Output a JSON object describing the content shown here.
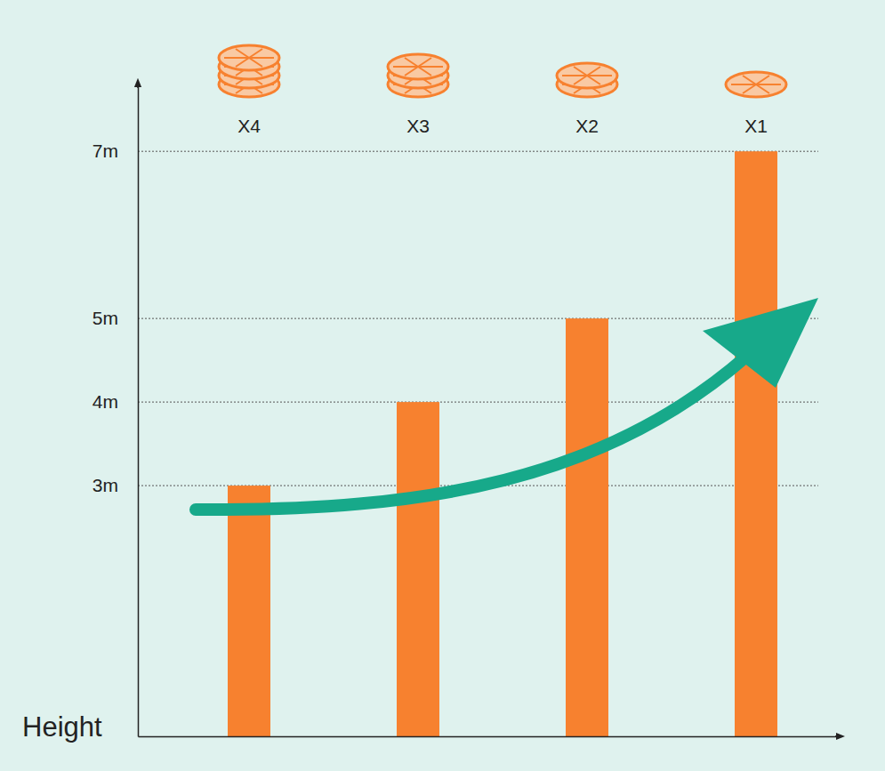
{
  "chart_data": {
    "type": "bar",
    "categories": [
      "X4",
      "X3",
      "X2",
      "X1"
    ],
    "values": [
      3,
      4,
      5,
      7
    ],
    "color": "#f7812f",
    "y_label": "Height",
    "ylim": [
      0,
      7.8
    ],
    "yticks": [
      {
        "value": 3,
        "label": "3m"
      },
      {
        "value": 4,
        "label": "4m"
      },
      {
        "value": 5,
        "label": "5m"
      },
      {
        "value": 7,
        "label": "7m"
      }
    ],
    "grid": true
  }
}
